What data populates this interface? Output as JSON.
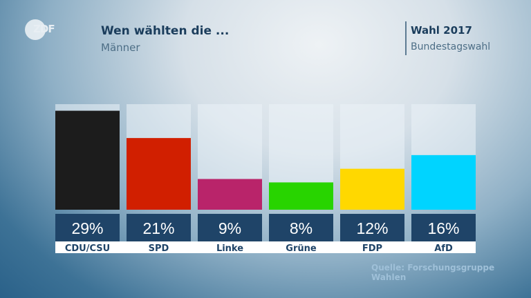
{
  "header": {
    "logo_text": "ZDF",
    "title": "Wen wählten die ...",
    "subtitle": "Männer",
    "right_title": "Wahl 2017",
    "right_subtitle": "Bundestagswahl"
  },
  "footer": {
    "source": "Quelle: Forschungsgruppe Wahlen"
  },
  "chart_data": {
    "type": "bar",
    "title": "Wen wählten die ... Männer",
    "categories": [
      "CDU/CSU",
      "SPD",
      "Linke",
      "Grüne",
      "FDP",
      "AfD"
    ],
    "values": [
      29,
      21,
      9,
      8,
      12,
      16
    ],
    "value_labels": [
      "29%",
      "21%",
      "9%",
      "8%",
      "12%",
      "16%"
    ],
    "colors": [
      "#1c1c1c",
      "#d11f00",
      "#b9246a",
      "#28d400",
      "#ffd800",
      "#00d4ff"
    ],
    "unit": "%",
    "ylim": [
      0,
      30
    ],
    "xlabel": "",
    "ylabel": "",
    "grid": false,
    "legend": "none"
  }
}
